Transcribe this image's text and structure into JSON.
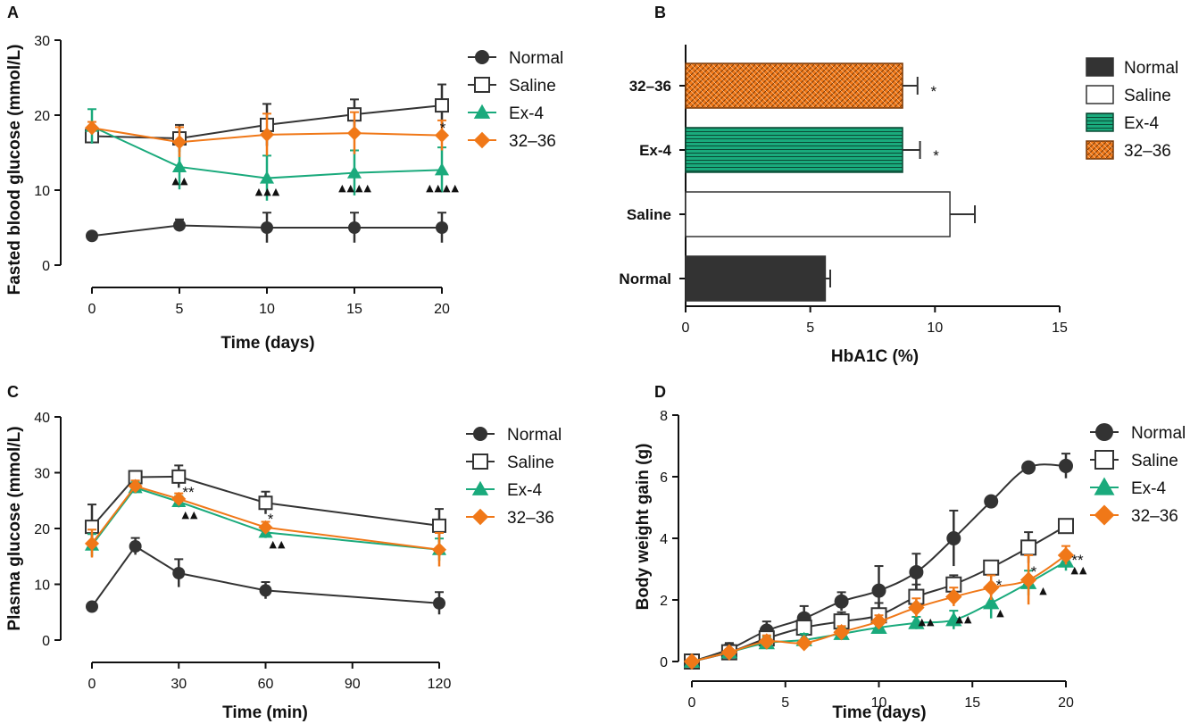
{
  "colors": {
    "Normal": "#333333",
    "Saline": "#333333",
    "Ex-4": "#1aaa7c",
    "32–36": "#f07818"
  },
  "chart_data": [
    {
      "panel": "A",
      "type": "line",
      "xlabel": "Time (days)",
      "ylabel": "Fasted blood glucose (mmol/L)",
      "x": [
        0,
        5,
        10,
        15,
        20
      ],
      "xticks": [
        "0",
        "5",
        "10",
        "15",
        "20"
      ],
      "yticks": [
        "0",
        "10",
        "20",
        "30"
      ],
      "xlim": [
        0,
        20
      ],
      "ylim": [
        0,
        30
      ],
      "legend": [
        "Normal",
        "Saline",
        "Ex-4",
        "32–36"
      ],
      "legend_position": "right",
      "series": [
        {
          "name": "Normal",
          "marker": "circle",
          "values": [
            3.9,
            5.3,
            5.0,
            5.0,
            5.0
          ],
          "err": [
            0.5,
            0.8,
            2.0,
            2.0,
            2.0
          ]
        },
        {
          "name": "Saline",
          "marker": "square",
          "values": [
            17.2,
            16.9,
            18.7,
            20.1,
            21.3
          ],
          "err": [
            0.8,
            1.8,
            2.8,
            2.0,
            2.8
          ]
        },
        {
          "name": "Ex-4",
          "marker": "triangle",
          "values": [
            18.5,
            13.1,
            11.6,
            12.3,
            12.7
          ],
          "err": [
            2.3,
            3.0,
            3.0,
            3.0,
            3.0
          ]
        },
        {
          "name": "32–36",
          "marker": "diamond",
          "values": [
            18.3,
            16.4,
            17.4,
            17.6,
            17.3
          ],
          "err": [
            0.8,
            2.0,
            2.8,
            2.8,
            2.0
          ]
        }
      ],
      "annotations": [
        {
          "x": 5,
          "text": "▲▲"
        },
        {
          "x": 10,
          "text": "▲▲▲"
        },
        {
          "x": 15,
          "text": "▲▲▲▲"
        },
        {
          "x": 20,
          "text": "▲▲▲▲"
        },
        {
          "x": 20,
          "text": "*"
        }
      ]
    },
    {
      "panel": "B",
      "type": "bar",
      "orientation": "horizontal",
      "xlabel": "HbA1C (%)",
      "categories": [
        "32–36",
        "Ex-4",
        "Saline",
        "Normal"
      ],
      "values": [
        8.7,
        8.7,
        10.6,
        5.6
      ],
      "err": [
        0.6,
        0.7,
        1.0,
        0.2
      ],
      "significance": [
        "*",
        "*",
        "",
        ""
      ],
      "xticks": [
        "0",
        "5",
        "10",
        "15"
      ],
      "xlim": [
        0,
        15
      ],
      "legend": [
        "Normal",
        "Saline",
        "Ex-4",
        "32–36"
      ],
      "legend_position": "right"
    },
    {
      "panel": "C",
      "type": "line",
      "xlabel": "Time (min)",
      "ylabel": "Plasma glucose (mmol/L)",
      "x": [
        0,
        15,
        30,
        60,
        120
      ],
      "xticks": [
        "0",
        "30",
        "60",
        "90",
        "120"
      ],
      "yticks": [
        "0",
        "10",
        "20",
        "30",
        "40"
      ],
      "xlim": [
        0,
        120
      ],
      "ylim": [
        0,
        40
      ],
      "legend": [
        "Normal",
        "Saline",
        "Ex-4",
        "32–36"
      ],
      "legend_position": "right",
      "series": [
        {
          "name": "Normal",
          "marker": "circle",
          "values": [
            6.0,
            16.8,
            12.0,
            8.9,
            6.6
          ],
          "err": [
            0.5,
            1.5,
            2.5,
            1.5,
            2.0
          ]
        },
        {
          "name": "Saline",
          "marker": "square",
          "values": [
            20.3,
            29.2,
            29.3,
            24.6,
            20.5
          ],
          "err": [
            4.0,
            1.0,
            2.0,
            2.0,
            3.0
          ]
        },
        {
          "name": "Ex-4",
          "marker": "triangle",
          "values": [
            17.0,
            27.3,
            24.8,
            19.3,
            16.2
          ],
          "err": [
            2.0,
            1.0,
            1.0,
            1.0,
            2.0
          ]
        },
        {
          "name": "32–36",
          "marker": "diamond",
          "values": [
            17.3,
            27.6,
            25.3,
            20.2,
            16.2
          ],
          "err": [
            2.5,
            1.0,
            1.0,
            1.0,
            3.0
          ]
        }
      ],
      "annotations": [
        {
          "x": 30,
          "text": "**"
        },
        {
          "x": 30,
          "text": "▲▲"
        },
        {
          "x": 60,
          "text": "*"
        },
        {
          "x": 60,
          "text": "▲▲"
        }
      ]
    },
    {
      "panel": "D",
      "type": "line",
      "xlabel": "Time (days)",
      "ylabel": "Body weight gain (g)",
      "x": [
        0,
        2,
        4,
        6,
        8,
        10,
        12,
        14,
        16,
        18,
        20
      ],
      "xticks": [
        "0",
        "5",
        "10",
        "15",
        "20"
      ],
      "yticks": [
        "0",
        "2",
        "4",
        "6",
        "8"
      ],
      "xlim": [
        0,
        20
      ],
      "ylim": [
        0,
        8
      ],
      "legend": [
        "Normal",
        "Saline",
        "Ex-4",
        "32–36"
      ],
      "legend_position": "top-right",
      "series": [
        {
          "name": "Normal",
          "marker": "circle",
          "values": [
            0.0,
            0.4,
            1.0,
            1.4,
            1.95,
            2.3,
            2.9,
            4.0,
            5.2,
            6.3,
            6.35
          ],
          "err": [
            0.05,
            0.2,
            0.3,
            0.4,
            0.3,
            0.8,
            0.6,
            0.9,
            0.1,
            0.1,
            0.4
          ]
        },
        {
          "name": "Saline",
          "marker": "square",
          "values": [
            0.0,
            0.3,
            0.75,
            1.1,
            1.3,
            1.5,
            2.1,
            2.5,
            3.05,
            3.7,
            4.4
          ],
          "err": [
            0.05,
            0.1,
            0.2,
            0.3,
            0.3,
            0.4,
            0.4,
            0.3,
            0.1,
            0.5,
            0.1
          ]
        },
        {
          "name": "Ex-4",
          "marker": "triangle",
          "values": [
            0.0,
            0.3,
            0.6,
            0.7,
            0.9,
            1.1,
            1.25,
            1.35,
            1.9,
            2.55,
            3.25
          ],
          "err": [
            0.05,
            0.1,
            0.2,
            0.2,
            0.2,
            0.2,
            0.2,
            0.3,
            0.5,
            0.4,
            0.3
          ]
        },
        {
          "name": "32–36",
          "marker": "diamond",
          "values": [
            0.0,
            0.3,
            0.65,
            0.6,
            0.95,
            1.3,
            1.75,
            2.1,
            2.4,
            2.65,
            3.45
          ],
          "err": [
            0.05,
            0.1,
            0.2,
            0.1,
            0.2,
            0.2,
            0.3,
            0.3,
            0.4,
            0.8,
            0.3
          ]
        }
      ],
      "annotations": [
        {
          "x": 12,
          "text": "▲▲"
        },
        {
          "x": 14,
          "text": "▲▲"
        },
        {
          "x": 16,
          "text": "*"
        },
        {
          "x": 16,
          "text": "▲"
        },
        {
          "x": 18,
          "text": "*"
        },
        {
          "x": 18,
          "text": "▲"
        },
        {
          "x": 20,
          "text": "**"
        },
        {
          "x": 20,
          "text": "▲▲"
        }
      ]
    }
  ]
}
